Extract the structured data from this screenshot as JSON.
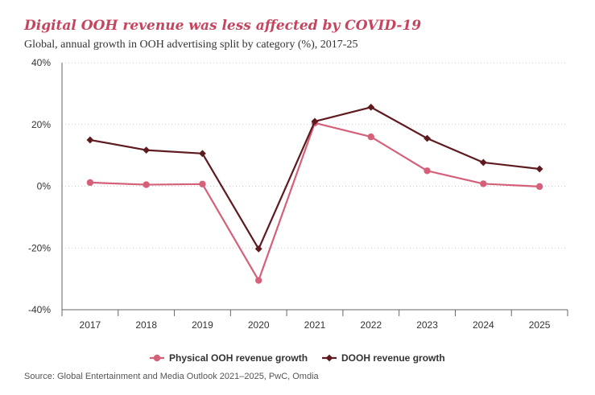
{
  "colors": {
    "physical": "#d4607a",
    "dooh": "#5e1a1f",
    "title": "#c5455f"
  },
  "chart_data": {
    "type": "line",
    "title": "Digital OOH revenue was less affected by COVID-19",
    "subtitle": "Global, annual growth in OOH advertising split by category (%), 2017-25",
    "categories": [
      "2017",
      "2018",
      "2019",
      "2020",
      "2021",
      "2022",
      "2023",
      "2024",
      "2025"
    ],
    "ylim": [
      -40,
      40
    ],
    "yticks": [
      40,
      20,
      0,
      -20,
      -40
    ],
    "ytick_labels": [
      "40%",
      "20%",
      "0%",
      "-20%",
      "-40%"
    ],
    "grid": true,
    "legend_position": "bottom",
    "series": [
      {
        "name": "Physical OOH revenue growth",
        "marker": "circle",
        "color_key": "physical",
        "values": [
          1.2,
          0.5,
          0.7,
          -30.5,
          20.5,
          16.0,
          5.0,
          0.8,
          -0.1
        ]
      },
      {
        "name": "DOOH revenue growth",
        "marker": "diamond",
        "color_key": "dooh",
        "values": [
          15.0,
          11.7,
          10.6,
          -20.3,
          21.0,
          25.6,
          15.5,
          7.7,
          5.6
        ]
      }
    ],
    "source": "Source: Global Entertainment and Media Outlook 2021–2025, PwC, Omdia"
  }
}
